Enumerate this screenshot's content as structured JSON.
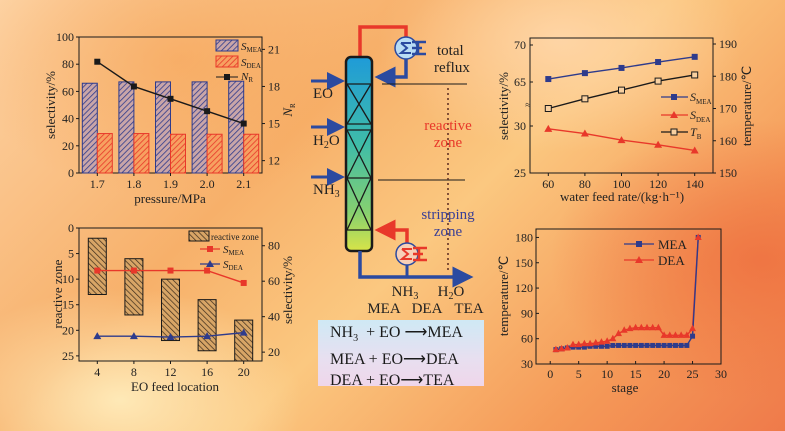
{
  "colors": {
    "mea": "#2e3b8c",
    "dea": "#e8382a",
    "line_black": "#1a1a1a",
    "reactive_label": "#e8382a",
    "stripping_label": "#3a3f96"
  },
  "diagram": {
    "feeds": [
      "EO",
      "H2O",
      "NH3"
    ],
    "top_label_1": "total",
    "top_label_2": "reflux",
    "reactive_label_1": "reactive",
    "reactive_label_2": "zone",
    "stripping_label_1": "stripping",
    "stripping_label_2": "zone",
    "bottom_products_row1": [
      "NH3",
      "H2O"
    ],
    "bottom_products_row2": [
      "MEA",
      "DEA",
      "TEA"
    ],
    "condenser_icon": "condenser-sigma-icon",
    "reboiler_icon": "reboiler-sigma-icon"
  },
  "reactions": [
    {
      "lhs": "NH3 + EO",
      "rhs": "MEA"
    },
    {
      "lhs": "MEA + EO",
      "rhs": "DEA"
    },
    {
      "lhs": "DEA + EO",
      "rhs": "TEA"
    }
  ],
  "chart_data": [
    {
      "id": "pressure",
      "type": "bar",
      "title": "",
      "xlabel": "pressure/MPa",
      "ylabel": "selectivity/%",
      "y2label": "N_R",
      "categories": [
        "1.7",
        "1.8",
        "1.9",
        "2.0",
        "2.1"
      ],
      "ylim": [
        0,
        100
      ],
      "yticks": [
        0,
        20,
        40,
        60,
        80,
        100
      ],
      "y2lim": [
        11,
        22
      ],
      "y2ticks": [
        12,
        15,
        18,
        21
      ],
      "series": [
        {
          "name": "S_MEA",
          "type": "bar",
          "values": [
            66,
            67,
            67,
            67,
            67.5
          ]
        },
        {
          "name": "S_DEA",
          "type": "bar",
          "values": [
            29,
            29,
            28.5,
            28.5,
            28.5
          ]
        },
        {
          "name": "N_R",
          "type": "line",
          "axis": "right",
          "values": [
            20,
            18,
            17,
            16,
            15
          ]
        }
      ],
      "legend": [
        "S_MEA",
        "S_DEA",
        "N_R"
      ],
      "legend_position": "top-right"
    },
    {
      "id": "water",
      "type": "line",
      "xlabel": "water feed rate/(kg·h⁻¹)",
      "ylabel": "selectivity/%",
      "y2label": "temperature/℃",
      "x": [
        60,
        80,
        100,
        120,
        140
      ],
      "xlim": [
        50,
        150
      ],
      "yticks": [
        25,
        30,
        65,
        70
      ],
      "ylim_lower": [
        25,
        31
      ],
      "ylim_upper": [
        63.5,
        70.5
      ],
      "y_axis_break": true,
      "y2lim": [
        150,
        190
      ],
      "y2ticks": [
        150,
        160,
        170,
        180,
        190
      ],
      "series": [
        {
          "name": "S_MEA",
          "axis": "left-upper",
          "marker": "filled-square",
          "values": [
            65.4,
            66.2,
            66.9,
            67.7,
            68.4
          ]
        },
        {
          "name": "S_DEA",
          "axis": "left-lower",
          "marker": "filled-triangle",
          "values": [
            29.7,
            29.2,
            28.5,
            28.0,
            27.4
          ]
        },
        {
          "name": "T_B",
          "axis": "right",
          "marker": "open-square",
          "values": [
            170,
            173,
            175.7,
            178.5,
            180.4
          ]
        }
      ],
      "legend": [
        "S_MEA",
        "S_DEA",
        "T_B"
      ],
      "legend_position": "center-right"
    },
    {
      "id": "eo",
      "type": "bar",
      "xlabel": "EO feed location",
      "ylabel": "reactive zone",
      "y2label": "selectivity/%",
      "categories": [
        "4",
        "8",
        "12",
        "16",
        "20"
      ],
      "ylim": [
        0,
        26
      ],
      "y_inverted": true,
      "yticks": [
        0,
        5,
        10,
        15,
        20,
        25
      ],
      "y2lim": [
        15,
        90
      ],
      "y2ticks": [
        20,
        40,
        60,
        80
      ],
      "reactive_zone": [
        [
          2,
          13
        ],
        [
          6,
          17
        ],
        [
          10,
          22
        ],
        [
          14,
          24
        ],
        [
          18,
          26
        ]
      ],
      "series": [
        {
          "name": "S_MEA",
          "axis": "right",
          "marker": "filled-square",
          "values": [
            66,
            66,
            66,
            66,
            59
          ]
        },
        {
          "name": "S_DEA",
          "axis": "right",
          "marker": "filled-triangle",
          "values": [
            29,
            29,
            28.5,
            29,
            31
          ]
        }
      ],
      "legend": [
        "reactive zone",
        "S_MEA",
        "S_DEA"
      ],
      "legend_position": "top-right"
    },
    {
      "id": "stage",
      "type": "line",
      "xlabel": "stage",
      "ylabel": "temperature/℃",
      "xlim": [
        -2.5,
        30
      ],
      "xticks": [
        0,
        5,
        10,
        15,
        20,
        25,
        30
      ],
      "ylim": [
        30,
        190
      ],
      "yticks": [
        30,
        60,
        90,
        120,
        150,
        180
      ],
      "x": [
        1,
        2,
        3,
        4,
        5,
        6,
        7,
        8,
        9,
        10,
        11,
        12,
        13,
        14,
        15,
        16,
        17,
        18,
        19,
        20,
        21,
        22,
        23,
        24,
        25,
        26
      ],
      "series": [
        {
          "name": "MEA",
          "marker": "filled-square",
          "values": [
            47,
            48,
            49,
            50,
            50,
            50,
            51,
            51,
            51,
            51,
            52,
            52,
            52,
            52,
            52,
            52,
            52,
            52,
            52,
            52,
            52,
            52,
            52,
            52,
            63,
            180
          ]
        },
        {
          "name": "DEA",
          "marker": "filled-triangle",
          "values": [
            47,
            48,
            49,
            53,
            53,
            54,
            54,
            55,
            56,
            57,
            60,
            66,
            70,
            72,
            73,
            73,
            73,
            73,
            73,
            64,
            64,
            64,
            64,
            64,
            72,
            180
          ]
        }
      ],
      "legend": [
        "MEA",
        "DEA"
      ],
      "legend_position": "top-right"
    }
  ]
}
